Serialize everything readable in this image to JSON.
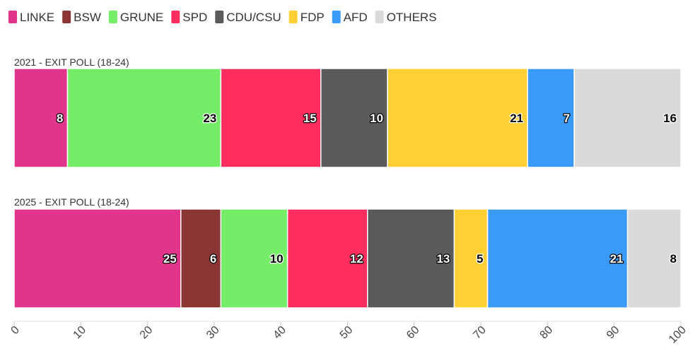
{
  "chart_data": {
    "type": "bar",
    "orientation": "horizontal",
    "stacked": true,
    "legend_position": "top-left",
    "colors": {
      "LINKE": "#e0358a",
      "BSW": "#8b3535",
      "GRUNE": "#75ed68",
      "SPD": "#ff2e5f",
      "CDU/CSU": "#5a5a5a",
      "FDP": "#ffd033",
      "AFD": "#3a9af7",
      "OTHERS": "#dadada"
    },
    "legend": [
      "LINKE",
      "BSW",
      "GRUNE",
      "SPD",
      "CDU/CSU",
      "FDP",
      "AFD",
      "OTHERS"
    ],
    "categories": [
      "2021 - EXIT POLL (18-24)",
      "2025 - EXIT POLL (18-24)"
    ],
    "series": [
      {
        "name": "LINKE",
        "values": [
          8,
          25
        ]
      },
      {
        "name": "BSW",
        "values": [
          null,
          6
        ]
      },
      {
        "name": "GRUNE",
        "values": [
          23,
          10
        ]
      },
      {
        "name": "SPD",
        "values": [
          15,
          12
        ]
      },
      {
        "name": "CDU/CSU",
        "values": [
          10,
          13
        ]
      },
      {
        "name": "FDP",
        "values": [
          21,
          5
        ]
      },
      {
        "name": "AFD",
        "values": [
          7,
          21
        ]
      },
      {
        "name": "OTHERS",
        "values": [
          16,
          8
        ]
      }
    ],
    "xlim": [
      0,
      100
    ],
    "xticks": [
      0,
      10,
      20,
      30,
      40,
      50,
      60,
      70,
      80,
      90,
      100
    ],
    "grid": false,
    "title": "",
    "xlabel": "",
    "ylabel": ""
  }
}
